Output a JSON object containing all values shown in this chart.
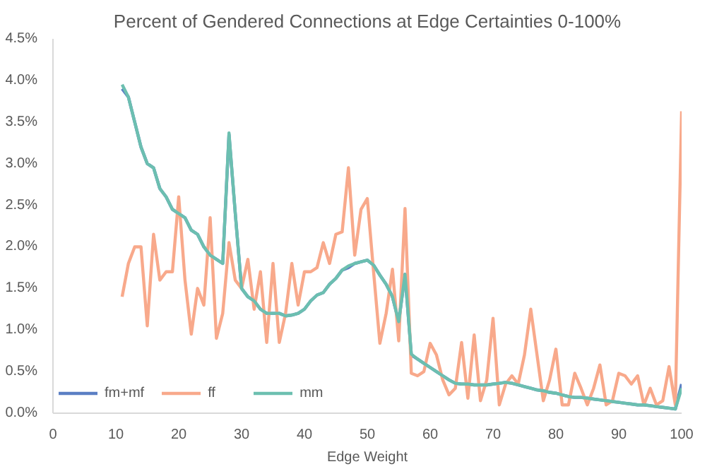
{
  "chart_data": {
    "type": "line",
    "title": "Percent of Gendered Connections at Edge Certainties 0-100%",
    "xlabel": "Edge Weight",
    "x": [
      11,
      12,
      13,
      14,
      15,
      16,
      17,
      18,
      19,
      20,
      21,
      22,
      23,
      24,
      25,
      26,
      27,
      28,
      29,
      30,
      31,
      32,
      33,
      34,
      35,
      36,
      37,
      38,
      39,
      40,
      41,
      42,
      43,
      44,
      45,
      46,
      47,
      48,
      49,
      50,
      51,
      52,
      53,
      54,
      55,
      56,
      57,
      58,
      59,
      60,
      61,
      62,
      63,
      64,
      65,
      66,
      67,
      68,
      69,
      70,
      71,
      72,
      73,
      74,
      75,
      76,
      77,
      78,
      79,
      80,
      81,
      82,
      83,
      84,
      85,
      86,
      87,
      88,
      89,
      90,
      91,
      92,
      93,
      94,
      95,
      96,
      97,
      98,
      99,
      100
    ],
    "series": [
      {
        "name": "fm+mf",
        "color": "#5b7fc4",
        "values": [
          3.9,
          3.8,
          3.5,
          3.2,
          3.0,
          2.95,
          2.7,
          2.6,
          2.45,
          2.4,
          2.35,
          2.2,
          2.15,
          2.0,
          1.9,
          1.85,
          1.8,
          3.35,
          2.4,
          1.5,
          1.4,
          1.35,
          1.25,
          1.2,
          1.2,
          1.2,
          1.17,
          1.18,
          1.2,
          1.25,
          1.35,
          1.42,
          1.45,
          1.55,
          1.62,
          1.72,
          1.75,
          1.8,
          1.82,
          1.84,
          1.78,
          1.66,
          1.55,
          1.4,
          1.1,
          1.67,
          0.7,
          0.65,
          0.6,
          0.55,
          0.5,
          0.45,
          0.4,
          0.36,
          0.35,
          0.35,
          0.34,
          0.34,
          0.34,
          0.35,
          0.36,
          0.37,
          0.36,
          0.34,
          0.32,
          0.3,
          0.28,
          0.27,
          0.25,
          0.24,
          0.22,
          0.2,
          0.19,
          0.19,
          0.18,
          0.17,
          0.16,
          0.15,
          0.14,
          0.13,
          0.12,
          0.11,
          0.1,
          0.1,
          0.09,
          0.08,
          0.07,
          0.06,
          0.05,
          0.35
        ]
      },
      {
        "name": "ff",
        "color": "#f8a98b",
        "values": [
          1.4,
          1.8,
          2.0,
          2.0,
          1.05,
          2.15,
          1.6,
          1.7,
          1.7,
          2.6,
          1.6,
          0.95,
          1.5,
          1.3,
          2.35,
          0.9,
          1.2,
          2.05,
          1.6,
          1.5,
          1.85,
          1.25,
          1.7,
          0.85,
          1.8,
          0.85,
          1.2,
          1.8,
          1.3,
          1.7,
          1.7,
          1.75,
          2.05,
          1.8,
          2.15,
          2.18,
          2.95,
          1.9,
          2.45,
          2.58,
          1.7,
          0.84,
          1.2,
          1.73,
          0.87,
          2.46,
          0.48,
          0.45,
          0.5,
          0.84,
          0.7,
          0.4,
          0.22,
          0.3,
          0.85,
          0.18,
          0.94,
          0.15,
          0.4,
          1.14,
          0.1,
          0.35,
          0.45,
          0.35,
          0.7,
          1.25,
          0.7,
          0.15,
          0.4,
          0.77,
          0.1,
          0.1,
          0.48,
          0.3,
          0.1,
          0.3,
          0.58,
          0.1,
          0.15,
          0.48,
          0.45,
          0.35,
          0.45,
          0.1,
          0.3,
          0.1,
          0.15,
          0.56,
          0.1,
          3.63
        ]
      },
      {
        "name": "mm",
        "color": "#6cbfb0",
        "values": [
          3.95,
          3.8,
          3.5,
          3.2,
          3.0,
          2.95,
          2.7,
          2.6,
          2.45,
          2.4,
          2.35,
          2.2,
          2.15,
          2.0,
          1.9,
          1.85,
          1.8,
          3.37,
          2.4,
          1.5,
          1.4,
          1.35,
          1.25,
          1.2,
          1.2,
          1.2,
          1.17,
          1.18,
          1.2,
          1.25,
          1.35,
          1.42,
          1.45,
          1.55,
          1.62,
          1.72,
          1.77,
          1.8,
          1.82,
          1.84,
          1.78,
          1.66,
          1.55,
          1.4,
          1.1,
          1.67,
          0.71,
          0.65,
          0.6,
          0.55,
          0.5,
          0.45,
          0.4,
          0.36,
          0.35,
          0.35,
          0.34,
          0.34,
          0.34,
          0.35,
          0.36,
          0.37,
          0.36,
          0.34,
          0.32,
          0.3,
          0.28,
          0.27,
          0.25,
          0.24,
          0.22,
          0.2,
          0.19,
          0.19,
          0.18,
          0.17,
          0.16,
          0.15,
          0.14,
          0.13,
          0.12,
          0.11,
          0.1,
          0.1,
          0.09,
          0.08,
          0.07,
          0.06,
          0.05,
          0.3
        ]
      }
    ],
    "xlim": [
      0,
      100
    ],
    "xticks": [
      0,
      10,
      20,
      30,
      40,
      50,
      60,
      70,
      80,
      90,
      100
    ],
    "ylim": [
      0,
      4.5
    ],
    "yticks": [
      {
        "value": 0,
        "label": "0.0%"
      },
      {
        "value": 0.5,
        "label": "0.5%"
      },
      {
        "value": 1,
        "label": "1.0%"
      },
      {
        "value": 1.5,
        "label": "1.5%"
      },
      {
        "value": 2,
        "label": "2.0%"
      },
      {
        "value": 2.5,
        "label": "2.5%"
      },
      {
        "value": 3,
        "label": "3.0%"
      },
      {
        "value": 3.5,
        "label": "3.5%"
      },
      {
        "value": 4,
        "label": "4.0%"
      },
      {
        "value": 4.5,
        "label": "4.5%"
      }
    ],
    "legend": "bottom left",
    "grid": false
  }
}
